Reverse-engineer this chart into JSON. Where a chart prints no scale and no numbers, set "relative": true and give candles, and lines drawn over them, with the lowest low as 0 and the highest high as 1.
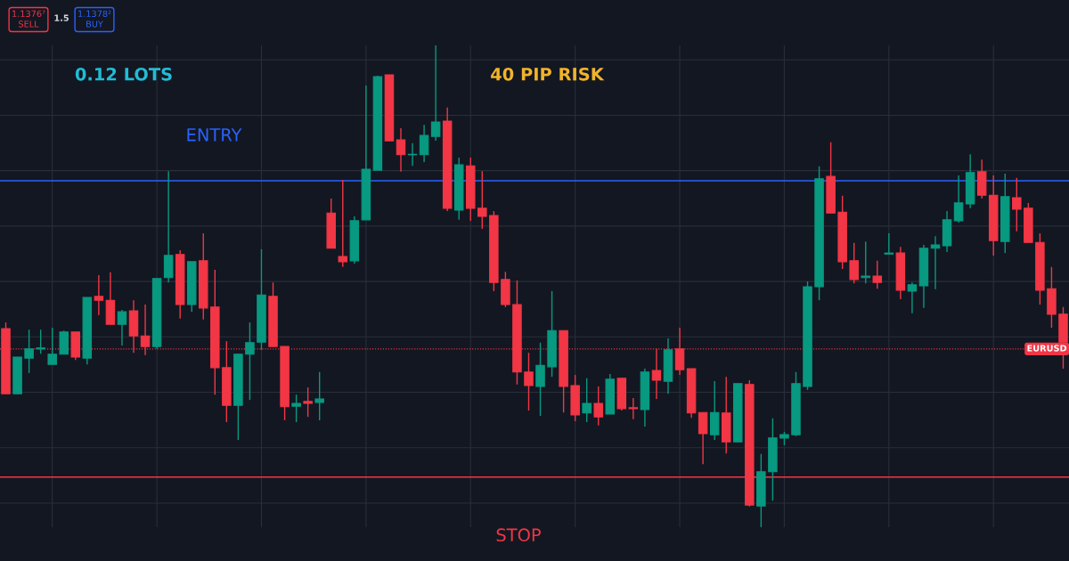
{
  "chart_data": {
    "type": "candlestick",
    "relative": true,
    "grid": true,
    "categories": [
      null,
      null,
      null,
      null,
      null,
      null,
      null,
      null,
      null,
      null,
      null,
      null,
      null,
      null,
      null,
      null,
      null,
      null,
      null,
      null,
      null,
      null,
      null,
      null,
      null,
      null,
      null,
      null,
      null,
      null,
      null,
      null,
      null,
      null,
      null,
      null,
      null,
      null,
      null,
      null,
      null,
      null,
      null,
      null,
      null,
      null,
      null,
      null,
      null,
      null,
      null,
      null,
      null,
      null,
      null,
      null,
      null,
      null,
      null,
      null,
      null,
      null,
      null,
      null,
      null,
      null,
      null,
      null,
      null,
      null,
      null,
      null,
      null,
      null,
      null,
      null,
      null,
      null,
      null,
      null,
      null,
      null,
      null,
      null,
      null,
      null,
      null,
      null,
      null,
      null,
      null,
      null
    ],
    "colors": [
      "#f23645",
      "#089981",
      "#089981",
      "#089981",
      "#089981",
      "#089981",
      "#f23645",
      "#089981",
      "#f23645",
      "#f23645",
      "#089981",
      "#f23645",
      "#f23645",
      "#089981",
      "#089981",
      "#f23645",
      "#089981",
      "#f23645",
      "#f23645",
      "#f23645",
      "#089981",
      "#089981",
      "#089981",
      "#f23645",
      "#f23645",
      "#089981",
      "#f23645",
      "#089981",
      "#f23645",
      "#f23645",
      "#089981",
      "#089981",
      "#089981",
      "#f23645",
      "#f23645",
      "#089981",
      "#089981",
      "#089981",
      "#f23645",
      "#089981",
      "#f23645",
      "#f23645",
      "#f23645",
      "#f23645",
      "#f23645",
      "#f23645",
      "#089981",
      "#089981",
      "#f23645",
      "#f23645",
      "#089981",
      "#f23645",
      "#089981",
      "#f23645",
      "#f23645",
      "#089981",
      "#f23645",
      "#089981",
      "#f23645",
      "#f23645",
      "#f23645",
      "#089981",
      "#f23645",
      "#089981",
      "#f23645",
      "#089981",
      "#089981",
      "#089981",
      "#089981",
      "#089981",
      "#089981",
      "#f23645",
      "#f23645",
      "#f23645",
      "#089981",
      "#f23645",
      "#089981",
      "#f23645",
      "#089981",
      "#089981",
      "#089981",
      "#089981",
      "#089981",
      "#089981",
      "#f23645",
      "#f23645",
      "#089981",
      "#f23645",
      "#f23645",
      "#f23645",
      "#f23645",
      "#f23645"
    ],
    "ohlc": [
      [
        0.412,
        0.425,
        0.277,
        0.277
      ],
      [
        0.277,
        0.353,
        0.277,
        0.353
      ],
      [
        0.351,
        0.41,
        0.32,
        0.37
      ],
      [
        0.37,
        0.41,
        0.36,
        0.372
      ],
      [
        0.338,
        0.414,
        0.338,
        0.359
      ],
      [
        0.359,
        0.408,
        0.359,
        0.405
      ],
      [
        0.405,
        0.405,
        0.347,
        0.353
      ],
      [
        0.351,
        0.477,
        0.338,
        0.477
      ],
      [
        0.479,
        0.523,
        0.44,
        0.471
      ],
      [
        0.471,
        0.529,
        0.421,
        0.421
      ],
      [
        0.421,
        0.451,
        0.377,
        0.447
      ],
      [
        0.449,
        0.471,
        0.362,
        0.397
      ],
      [
        0.397,
        0.462,
        0.357,
        0.375
      ],
      [
        0.375,
        0.516,
        0.37,
        0.516
      ],
      [
        0.518,
        0.739,
        0.508,
        0.564
      ],
      [
        0.566,
        0.575,
        0.433,
        0.462
      ],
      [
        0.462,
        0.551,
        0.447,
        0.551
      ],
      [
        0.553,
        0.61,
        0.431,
        0.455
      ],
      [
        0.457,
        0.534,
        0.275,
        0.331
      ],
      [
        0.331,
        0.386,
        0.218,
        0.253
      ],
      [
        0.253,
        0.36,
        0.181,
        0.359
      ],
      [
        0.359,
        0.425,
        0.264,
        0.383
      ],
      [
        0.384,
        0.577,
        0.368,
        0.482
      ],
      [
        0.479,
        0.508,
        0.375,
        0.375
      ],
      [
        0.375,
        0.375,
        0.222,
        0.25
      ],
      [
        0.251,
        0.275,
        0.218,
        0.257
      ],
      [
        0.261,
        0.29,
        0.229,
        0.257
      ],
      [
        0.259,
        0.322,
        0.222,
        0.266
      ],
      [
        0.652,
        0.682,
        0.579,
        0.579
      ],
      [
        0.562,
        0.721,
        0.54,
        0.551
      ],
      [
        0.553,
        0.645,
        0.547,
        0.636
      ],
      [
        0.638,
        0.917,
        0.638,
        0.743
      ],
      [
        0.741,
        0.937,
        0.741,
        0.935
      ],
      [
        0.939,
        0.939,
        0.802,
        0.802
      ],
      [
        0.804,
        0.828,
        0.738,
        0.773
      ],
      [
        0.773,
        0.797,
        0.75,
        0.774
      ],
      [
        0.773,
        0.835,
        0.758,
        0.813
      ],
      [
        0.811,
        1,
        0.802,
        0.841
      ],
      [
        0.843,
        0.871,
        0.656,
        0.662
      ],
      [
        0.658,
        0.767,
        0.638,
        0.752
      ],
      [
        0.75,
        0.767,
        0.636,
        0.662
      ],
      [
        0.662,
        0.739,
        0.619,
        0.645
      ],
      [
        0.647,
        0.656,
        0.49,
        0.508
      ],
      [
        0.514,
        0.53,
        0.457,
        0.462
      ],
      [
        0.462,
        0.512,
        0.296,
        0.322
      ],
      [
        0.322,
        0.362,
        0.242,
        0.294
      ],
      [
        0.292,
        0.383,
        0.231,
        0.336
      ],
      [
        0.333,
        0.49,
        0.312,
        0.408
      ],
      [
        0.408,
        0.408,
        0.238,
        0.292
      ],
      [
        0.294,
        0.316,
        0.22,
        0.233
      ],
      [
        0.237,
        0.309,
        0.218,
        0.257
      ],
      [
        0.257,
        0.292,
        0.211,
        0.229
      ],
      [
        0.235,
        0.318,
        0.235,
        0.307
      ],
      [
        0.309,
        0.309,
        0.242,
        0.246
      ],
      [
        0.248,
        0.268,
        0.224,
        0.246
      ],
      [
        0.244,
        0.329,
        0.209,
        0.322
      ],
      [
        0.325,
        0.37,
        0.266,
        0.305
      ],
      [
        0.303,
        0.392,
        0.277,
        0.368
      ],
      [
        0.37,
        0.414,
        0.316,
        0.327
      ],
      [
        0.329,
        0.329,
        0.227,
        0.237
      ],
      [
        0.238,
        0.238,
        0.131,
        0.194
      ],
      [
        0.192,
        0.303,
        0.181,
        0.238
      ],
      [
        0.237,
        0.312,
        0.153,
        0.177
      ],
      [
        0.177,
        0.298,
        0.177,
        0.298
      ],
      [
        0.296,
        0.305,
        0.043,
        0.046
      ],
      [
        0.044,
        0.152,
        0,
        0.115
      ],
      [
        0.115,
        0.226,
        0.055,
        0.185
      ],
      [
        0.185,
        0.198,
        0.17,
        0.192
      ],
      [
        0.192,
        0.322,
        0.189,
        0.298
      ],
      [
        0.292,
        0.51,
        0.285,
        0.499
      ],
      [
        0.499,
        0.749,
        0.471,
        0.723
      ],
      [
        0.728,
        0.799,
        0.652,
        0.652
      ],
      [
        0.654,
        0.688,
        0.536,
        0.551
      ],
      [
        0.553,
        0.59,
        0.506,
        0.514
      ],
      [
        0.518,
        0.593,
        0.506,
        0.521
      ],
      [
        0.521,
        0.553,
        0.495,
        0.508
      ],
      [
        0.567,
        0.61,
        0.567,
        0.569
      ],
      [
        0.569,
        0.582,
        0.473,
        0.492
      ],
      [
        0.49,
        0.508,
        0.444,
        0.503
      ],
      [
        0.501,
        0.586,
        0.455,
        0.579
      ],
      [
        0.579,
        0.604,
        0.494,
        0.586
      ],
      [
        0.584,
        0.656,
        0.571,
        0.638
      ],
      [
        0.636,
        0.73,
        0.632,
        0.673
      ],
      [
        0.671,
        0.774,
        0.662,
        0.736
      ],
      [
        0.738,
        0.763,
        0.682,
        0.689
      ],
      [
        0.689,
        0.73,
        0.564,
        0.595
      ],
      [
        0.593,
        0.734,
        0.569,
        0.686
      ],
      [
        0.684,
        0.725,
        0.614,
        0.66
      ],
      [
        0.662,
        0.673,
        0.591,
        0.591
      ],
      [
        0.591,
        0.61,
        0.462,
        0.492
      ],
      [
        0.495,
        0.54,
        0.414,
        0.442
      ],
      [
        0.442,
        0.457,
        0.329,
        0.384
      ]
    ],
    "ref_lines": [
      {
        "axis": "y",
        "value": 0.719,
        "label": "ENTRY",
        "color": "#2962ff",
        "line_style": "solid"
      },
      {
        "axis": "y",
        "value": 0.104,
        "label": "STOP",
        "color": "#f23645",
        "line_style": "solid"
      },
      {
        "axis": "y",
        "value": 0.37,
        "label": "EURUSD",
        "color": "#f23645",
        "line_style": "dotted"
      }
    ],
    "annotations": [
      "0.12 LOTS",
      "40 PIP RISK",
      "1.1376⁷\nSELL",
      "1.5",
      "1.1378²\nBUY"
    ]
  }
}
